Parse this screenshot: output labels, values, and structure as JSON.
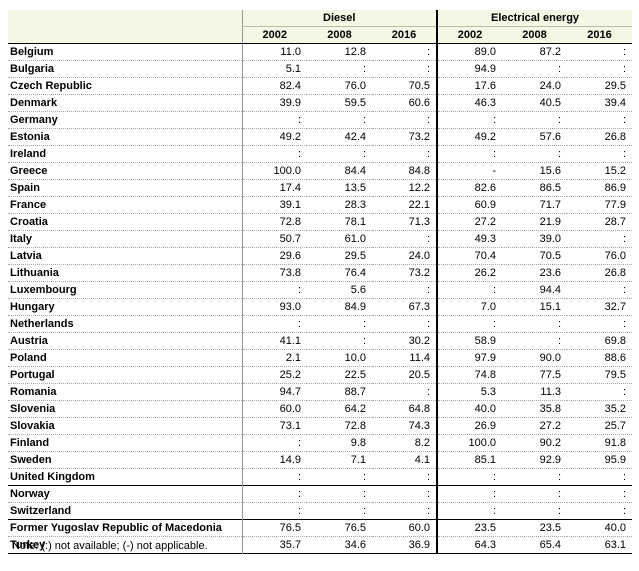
{
  "table": {
    "groups": [
      {
        "label": "Diesel"
      },
      {
        "label": "Electrical energy"
      }
    ],
    "years": [
      "2002",
      "2008",
      "2016",
      "2002",
      "2008",
      "2016"
    ],
    "rows": [
      {
        "country": "Belgium",
        "v": [
          "11.0",
          "12.8",
          ":",
          "89.0",
          "87.2",
          ":"
        ]
      },
      {
        "country": "Bulgaria",
        "v": [
          "5.1",
          ":",
          ":",
          "94.9",
          ":",
          ":"
        ]
      },
      {
        "country": "Czech Republic",
        "v": [
          "82.4",
          "76.0",
          "70.5",
          "17.6",
          "24.0",
          "29.5"
        ]
      },
      {
        "country": "Denmark",
        "v": [
          "39.9",
          "59.5",
          "60.6",
          "46.3",
          "40.5",
          "39.4"
        ]
      },
      {
        "country": "Germany",
        "v": [
          ":",
          ":",
          ":",
          ":",
          ":",
          ":"
        ]
      },
      {
        "country": "Estonia",
        "v": [
          "49.2",
          "42.4",
          "73.2",
          "49.2",
          "57.6",
          "26.8"
        ]
      },
      {
        "country": "Ireland",
        "v": [
          ":",
          ":",
          ":",
          ":",
          ":",
          ":"
        ]
      },
      {
        "country": "Greece",
        "v": [
          "100.0",
          "84.4",
          "84.8",
          "-",
          "15.6",
          "15.2"
        ]
      },
      {
        "country": "Spain",
        "v": [
          "17.4",
          "13.5",
          "12.2",
          "82.6",
          "86.5",
          "86.9"
        ]
      },
      {
        "country": "France",
        "v": [
          "39.1",
          "28.3",
          "22.1",
          "60.9",
          "71.7",
          "77.9"
        ]
      },
      {
        "country": "Croatia",
        "v": [
          "72.8",
          "78.1",
          "71.3",
          "27.2",
          "21.9",
          "28.7"
        ]
      },
      {
        "country": "Italy",
        "v": [
          "50.7",
          "61.0",
          ":",
          "49.3",
          "39.0",
          ":"
        ]
      },
      {
        "country": "Latvia",
        "v": [
          "29.6",
          "29.5",
          "24.0",
          "70.4",
          "70.5",
          "76.0"
        ]
      },
      {
        "country": "Lithuania",
        "v": [
          "73.8",
          "76.4",
          "73.2",
          "26.2",
          "23.6",
          "26.8"
        ]
      },
      {
        "country": "Luxembourg",
        "v": [
          ":",
          "5.6",
          ":",
          ":",
          "94.4",
          ":"
        ]
      },
      {
        "country": "Hungary",
        "v": [
          "93.0",
          "84.9",
          "67.3",
          "7.0",
          "15.1",
          "32.7"
        ]
      },
      {
        "country": "Netherlands",
        "v": [
          ":",
          ":",
          ":",
          ":",
          ":",
          ":"
        ]
      },
      {
        "country": "Austria",
        "v": [
          "41.1",
          ":",
          "30.2",
          "58.9",
          ":",
          "69.8"
        ]
      },
      {
        "country": "Poland",
        "v": [
          "2.1",
          "10.0",
          "11.4",
          "97.9",
          "90.0",
          "88.6"
        ]
      },
      {
        "country": "Portugal",
        "v": [
          "25.2",
          "22.5",
          "20.5",
          "74.8",
          "77.5",
          "79.5"
        ]
      },
      {
        "country": "Romania",
        "v": [
          "94.7",
          "88.7",
          ":",
          "5.3",
          "11.3",
          ":"
        ]
      },
      {
        "country": "Slovenia",
        "v": [
          "60.0",
          "64.2",
          "64.8",
          "40.0",
          "35.8",
          "35.2"
        ]
      },
      {
        "country": "Slovakia",
        "v": [
          "73.1",
          "72.8",
          "74.3",
          "26.9",
          "27.2",
          "25.7"
        ]
      },
      {
        "country": "Finland",
        "v": [
          ":",
          "9.8",
          "8.2",
          "100.0",
          "90.2",
          "91.8"
        ]
      },
      {
        "country": "Sweden",
        "v": [
          "14.9",
          "7.1",
          "4.1",
          "85.1",
          "92.9",
          "95.9"
        ]
      },
      {
        "country": "United Kingdom",
        "v": [
          ":",
          ":",
          ":",
          ":",
          ":",
          ":"
        ]
      },
      {
        "country": "Norway",
        "v": [
          ":",
          ":",
          ":",
          ":",
          ":",
          ":"
        ]
      },
      {
        "country": "Switzerland",
        "v": [
          ":",
          ":",
          ":",
          ":",
          ":",
          ":"
        ]
      },
      {
        "country": "Former Yugoslav Republic of Macedonia",
        "v": [
          "76.5",
          "76.5",
          "60.0",
          "23.5",
          "23.5",
          "40.0"
        ]
      },
      {
        "country": "Turkey",
        "v": [
          "35.7",
          "34.6",
          "36.9",
          "64.3",
          "65.4",
          "63.1"
        ]
      }
    ],
    "separator_after": [
      "United Kingdom",
      "Switzerland"
    ]
  },
  "note": "Note: (:) not available; (-) not applicable."
}
